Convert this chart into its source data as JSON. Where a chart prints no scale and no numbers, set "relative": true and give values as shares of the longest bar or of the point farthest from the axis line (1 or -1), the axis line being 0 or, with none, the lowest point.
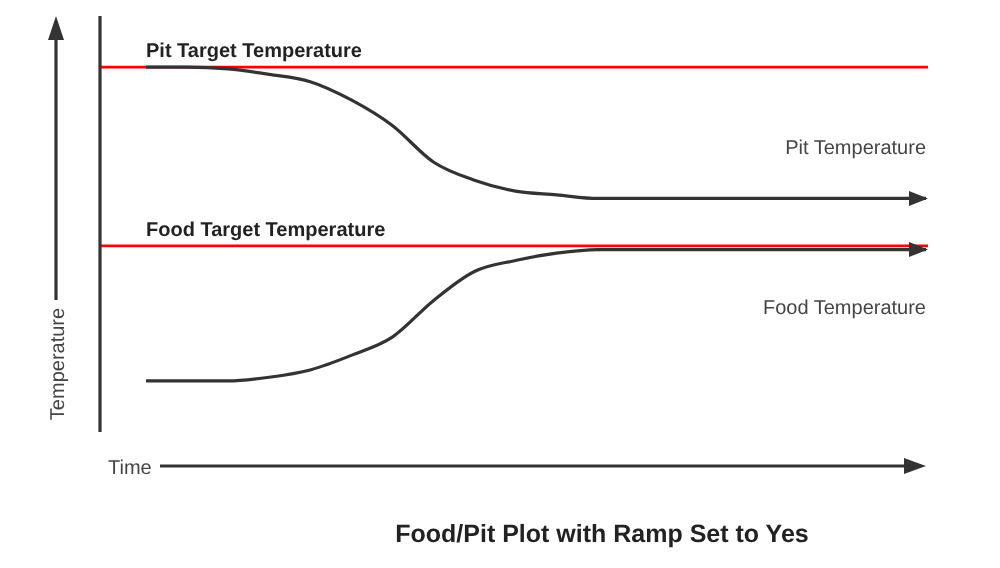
{
  "chart_data": {
    "type": "line",
    "title": "Food/Pit Plot with Ramp Set to Yes",
    "xlabel": "Time",
    "ylabel": "Temperature",
    "relative": true,
    "marker": "none",
    "line_style": "solid",
    "categories": [
      null,
      null,
      null,
      null,
      null,
      null,
      null,
      null,
      null,
      null,
      null,
      null,
      null,
      null,
      null,
      null,
      null,
      null,
      null,
      null
    ],
    "series": [
      {
        "name": "Pit Temperature",
        "color": "#333333",
        "values": [
          1,
          1,
          0.995,
          0.98,
          0.96,
          0.91,
          0.84,
          0.74,
          0.69,
          0.66,
          0.65,
          0.64,
          0.64,
          0.64,
          0.64,
          0.64,
          0.64,
          0.64,
          0.64,
          0.64
        ]
      },
      {
        "name": "Food Temperature",
        "color": "#333333",
        "values": [
          0.14,
          0.14,
          0.14,
          0.15,
          0.17,
          0.21,
          0.26,
          0.36,
          0.44,
          0.47,
          0.49,
          0.5,
          0.5,
          0.5,
          0.5,
          0.5,
          0.5,
          0.5,
          0.5,
          0.5
        ]
      }
    ],
    "ref_lines": [
      {
        "axis": "y",
        "value": 1,
        "label": "Pit Target Temperature",
        "color": "#ff0000"
      },
      {
        "axis": "y",
        "value": 0.51,
        "label": "Food Target Temperature",
        "color": "#ff0000"
      }
    ]
  }
}
